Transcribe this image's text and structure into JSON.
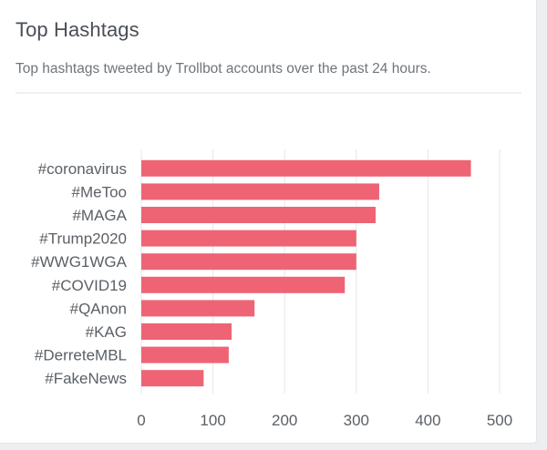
{
  "card": {
    "title": "Top Hashtags",
    "subtitle": "Top hashtags tweeted by Trollbot accounts over the past 24 hours."
  },
  "colors": {
    "bar": "#ee6474",
    "grid": "#e6e7e9",
    "axis_text": "#5b6066"
  },
  "chart_data": {
    "type": "bar",
    "orientation": "horizontal",
    "categories": [
      "#coronavirus",
      "#MeToo",
      "#MAGA",
      "#Trump2020",
      "#WWG1WGA",
      "#COVID19",
      "#QAnon",
      "#KAG",
      "#DerreteMBL",
      "#FakeNews"
    ],
    "values": [
      460,
      332,
      327,
      300,
      300,
      284,
      158,
      126,
      122,
      87
    ],
    "xlim": [
      0,
      500
    ],
    "xticks": [
      0,
      100,
      200,
      300,
      400,
      500
    ],
    "grid": true,
    "legend": "none",
    "xlabel": "",
    "ylabel": ""
  }
}
